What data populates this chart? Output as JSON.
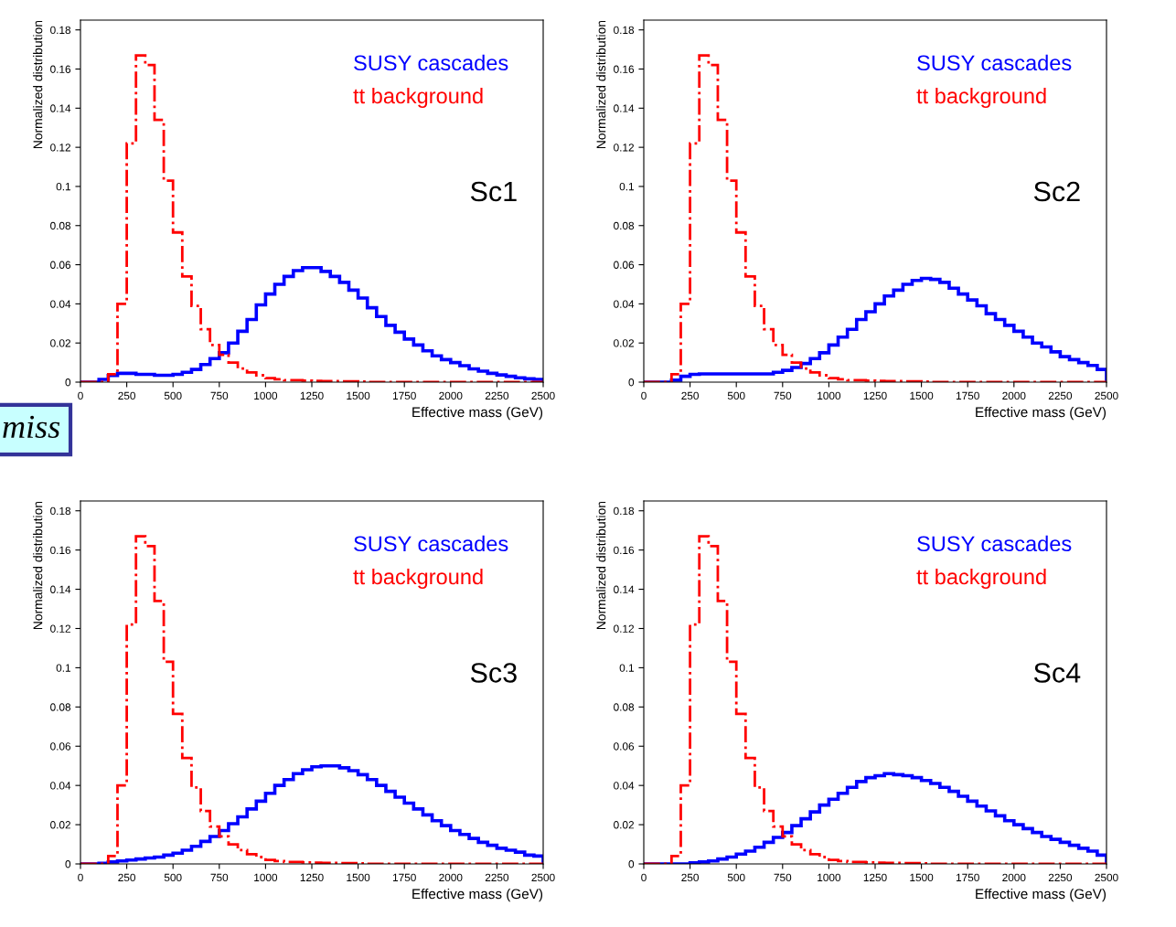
{
  "chart_data": [
    {
      "type": "histogram",
      "xlabel": "Effective mass (GeV)",
      "ylabel": "Normalized distribution",
      "annotations": [
        "Sc1",
        "miss"
      ],
      "legend": "top right",
      "xlim": [
        0,
        2500
      ],
      "ylim": [
        0,
        0.185
      ],
      "xticks": [
        0,
        250,
        500,
        750,
        1000,
        1250,
        1500,
        1750,
        2000,
        2250,
        2500
      ],
      "yticks": [
        0,
        0.02,
        0.04,
        0.06,
        0.08,
        0.1,
        0.12,
        0.14,
        0.16,
        0.18
      ],
      "bins": [
        0,
        50,
        100,
        150,
        200,
        250,
        300,
        350,
        400,
        450,
        500,
        550,
        600,
        650,
        700,
        750,
        800,
        850,
        900,
        950,
        1000,
        1050,
        1100,
        1150,
        1200,
        1250,
        1300,
        1350,
        1400,
        1450,
        1500,
        1550,
        1600,
        1650,
        1700,
        1750,
        1800,
        1850,
        1900,
        1950,
        2000,
        2050,
        2100,
        2150,
        2200,
        2250,
        2300,
        2350,
        2400,
        2450,
        2500
      ],
      "series": [
        {
          "name": "SUSY cascades",
          "color": "#0000ff",
          "line_style": "solid",
          "values": [
            0,
            0,
            0.0014,
            0.0034,
            0.0045,
            0.0045,
            0.004,
            0.004,
            0.0035,
            0.0035,
            0.004,
            0.005,
            0.0065,
            0.009,
            0.012,
            0.015,
            0.02,
            0.026,
            0.032,
            0.0395,
            0.045,
            0.05,
            0.054,
            0.057,
            0.0585,
            0.0585,
            0.0566,
            0.054,
            0.051,
            0.047,
            0.043,
            0.038,
            0.0335,
            0.029,
            0.0255,
            0.022,
            0.019,
            0.016,
            0.0134,
            0.0115,
            0.01,
            0.0084,
            0.0068,
            0.0056,
            0.0045,
            0.0037,
            0.003,
            0.0022,
            0.0017,
            0.0014
          ]
        },
        {
          "name": "tt background",
          "color": "#ff0000",
          "line_style": "dashdot",
          "values": [
            0,
            0,
            0,
            0.004,
            0.04,
            0.122,
            0.167,
            0.162,
            0.134,
            0.103,
            0.0765,
            0.054,
            0.039,
            0.027,
            0.019,
            0.014,
            0.01,
            0.007,
            0.005,
            0.0035,
            0.002,
            0.0015,
            0.001,
            0.001,
            0.0008,
            0.0006,
            0.0005,
            0.0005,
            0.0004,
            0.0004,
            0.0003,
            0,
            0,
            0,
            0,
            0,
            0,
            0,
            0,
            0,
            0,
            0,
            0,
            0,
            0,
            0,
            0,
            0,
            0,
            0
          ]
        }
      ]
    },
    {
      "type": "histogram",
      "xlabel": "Effective mass (GeV)",
      "ylabel": "Normalized distribution",
      "annotations": [
        "Sc2"
      ],
      "legend": "top right",
      "xlim": [
        0,
        2500
      ],
      "ylim": [
        0,
        0.185
      ],
      "xticks": [
        0,
        250,
        500,
        750,
        1000,
        1250,
        1500,
        1750,
        2000,
        2250,
        2500
      ],
      "yticks": [
        0,
        0.02,
        0.04,
        0.06,
        0.08,
        0.1,
        0.12,
        0.14,
        0.16,
        0.18
      ],
      "bins": [
        0,
        50,
        100,
        150,
        200,
        250,
        300,
        350,
        400,
        450,
        500,
        550,
        600,
        650,
        700,
        750,
        800,
        850,
        900,
        950,
        1000,
        1050,
        1100,
        1150,
        1200,
        1250,
        1300,
        1350,
        1400,
        1450,
        1500,
        1550,
        1600,
        1650,
        1700,
        1750,
        1800,
        1850,
        1900,
        1950,
        2000,
        2050,
        2100,
        2150,
        2200,
        2250,
        2300,
        2350,
        2400,
        2450,
        2500
      ],
      "series": [
        {
          "name": "SUSY cascades",
          "color": "#0000ff",
          "line_style": "solid",
          "values": [
            0,
            0,
            0,
            0.001,
            0.003,
            0.004,
            0.0042,
            0.0042,
            0.0042,
            0.0042,
            0.0042,
            0.0042,
            0.0042,
            0.0042,
            0.005,
            0.006,
            0.0075,
            0.0095,
            0.012,
            0.015,
            0.019,
            0.023,
            0.027,
            0.032,
            0.036,
            0.04,
            0.044,
            0.047,
            0.05,
            0.052,
            0.053,
            0.0525,
            0.051,
            0.048,
            0.045,
            0.042,
            0.039,
            0.035,
            0.032,
            0.029,
            0.026,
            0.023,
            0.02,
            0.018,
            0.0155,
            0.013,
            0.0115,
            0.01,
            0.0085,
            0.0065
          ]
        },
        {
          "name": "tt background",
          "color": "#ff0000",
          "line_style": "dashdot",
          "values": [
            0,
            0,
            0,
            0.004,
            0.04,
            0.122,
            0.167,
            0.162,
            0.134,
            0.103,
            0.0765,
            0.054,
            0.039,
            0.027,
            0.019,
            0.014,
            0.01,
            0.007,
            0.005,
            0.0035,
            0.002,
            0.0015,
            0.001,
            0.001,
            0.0008,
            0.0006,
            0.0005,
            0.0005,
            0.0004,
            0.0004,
            0.0003,
            0,
            0,
            0,
            0,
            0,
            0,
            0,
            0,
            0,
            0,
            0,
            0,
            0,
            0,
            0,
            0,
            0,
            0,
            0
          ]
        }
      ]
    },
    {
      "type": "histogram",
      "xlabel": "Effective mass (GeV)",
      "ylabel": "Normalized distribution",
      "annotations": [
        "Sc3"
      ],
      "legend": "top right",
      "xlim": [
        0,
        2500
      ],
      "ylim": [
        0,
        0.185
      ],
      "xticks": [
        0,
        250,
        500,
        750,
        1000,
        1250,
        1500,
        1750,
        2000,
        2250,
        2500
      ],
      "yticks": [
        0,
        0.02,
        0.04,
        0.06,
        0.08,
        0.1,
        0.12,
        0.14,
        0.16,
        0.18
      ],
      "bins": [
        0,
        50,
        100,
        150,
        200,
        250,
        300,
        350,
        400,
        450,
        500,
        550,
        600,
        650,
        700,
        750,
        800,
        850,
        900,
        950,
        1000,
        1050,
        1100,
        1150,
        1200,
        1250,
        1300,
        1350,
        1400,
        1450,
        1500,
        1550,
        1600,
        1650,
        1700,
        1750,
        1800,
        1850,
        1900,
        1950,
        2000,
        2050,
        2100,
        2150,
        2200,
        2250,
        2300,
        2350,
        2400,
        2450,
        2500
      ],
      "series": [
        {
          "name": "SUSY cascades",
          "color": "#0000ff",
          "line_style": "solid",
          "values": [
            0,
            0,
            0.0003,
            0.001,
            0.0015,
            0.002,
            0.0025,
            0.003,
            0.0035,
            0.0045,
            0.0055,
            0.007,
            0.009,
            0.0115,
            0.014,
            0.017,
            0.0205,
            0.024,
            0.028,
            0.032,
            0.036,
            0.04,
            0.043,
            0.046,
            0.048,
            0.0495,
            0.05,
            0.05,
            0.049,
            0.0475,
            0.0455,
            0.043,
            0.04,
            0.037,
            0.034,
            0.031,
            0.028,
            0.025,
            0.022,
            0.0195,
            0.017,
            0.015,
            0.013,
            0.011,
            0.0095,
            0.008,
            0.007,
            0.006,
            0.0045,
            0.004
          ]
        },
        {
          "name": "tt background",
          "color": "#ff0000",
          "line_style": "dashdot",
          "values": [
            0,
            0,
            0,
            0.004,
            0.04,
            0.122,
            0.167,
            0.162,
            0.134,
            0.103,
            0.0765,
            0.054,
            0.039,
            0.027,
            0.019,
            0.014,
            0.01,
            0.007,
            0.005,
            0.0035,
            0.002,
            0.0015,
            0.001,
            0.001,
            0.0008,
            0.0006,
            0.0005,
            0.0005,
            0.0004,
            0.0004,
            0.0003,
            0,
            0,
            0,
            0,
            0,
            0,
            0,
            0,
            0,
            0,
            0,
            0,
            0,
            0,
            0,
            0,
            0,
            0,
            0
          ]
        }
      ]
    },
    {
      "type": "histogram",
      "xlabel": "Effective mass (GeV)",
      "ylabel": "Normalized distribution",
      "annotations": [
        "Sc4"
      ],
      "legend": "top right",
      "xlim": [
        0,
        2500
      ],
      "ylim": [
        0,
        0.185
      ],
      "xticks": [
        0,
        250,
        500,
        750,
        1000,
        1250,
        1500,
        1750,
        2000,
        2250,
        2500
      ],
      "yticks": [
        0,
        0.02,
        0.04,
        0.06,
        0.08,
        0.1,
        0.12,
        0.14,
        0.16,
        0.18
      ],
      "bins": [
        0,
        50,
        100,
        150,
        200,
        250,
        300,
        350,
        400,
        450,
        500,
        550,
        600,
        650,
        700,
        750,
        800,
        850,
        900,
        950,
        1000,
        1050,
        1100,
        1150,
        1200,
        1250,
        1300,
        1350,
        1400,
        1450,
        1500,
        1550,
        1600,
        1650,
        1700,
        1750,
        1800,
        1850,
        1900,
        1950,
        2000,
        2050,
        2100,
        2150,
        2200,
        2250,
        2300,
        2350,
        2400,
        2450,
        2500
      ],
      "series": [
        {
          "name": "SUSY cascades",
          "color": "#0000ff",
          "line_style": "solid",
          "values": [
            0,
            0,
            0,
            0,
            0,
            0.0005,
            0.001,
            0.0015,
            0.0025,
            0.0035,
            0.005,
            0.0065,
            0.0085,
            0.011,
            0.0135,
            0.016,
            0.0195,
            0.023,
            0.0265,
            0.03,
            0.033,
            0.036,
            0.039,
            0.042,
            0.044,
            0.045,
            0.046,
            0.0455,
            0.045,
            0.044,
            0.0425,
            0.041,
            0.039,
            0.037,
            0.0345,
            0.032,
            0.0295,
            0.027,
            0.0245,
            0.022,
            0.02,
            0.018,
            0.016,
            0.014,
            0.0125,
            0.011,
            0.0095,
            0.008,
            0.0065,
            0.0045
          ]
        },
        {
          "name": "tt background",
          "color": "#ff0000",
          "line_style": "dashdot",
          "values": [
            0,
            0,
            0,
            0.004,
            0.04,
            0.122,
            0.167,
            0.162,
            0.134,
            0.103,
            0.0765,
            0.054,
            0.039,
            0.027,
            0.019,
            0.014,
            0.01,
            0.007,
            0.005,
            0.0035,
            0.002,
            0.0015,
            0.001,
            0.001,
            0.0008,
            0.0006,
            0.0005,
            0.0005,
            0.0004,
            0.0004,
            0.0003,
            0,
            0,
            0,
            0,
            0,
            0,
            0,
            0,
            0,
            0,
            0,
            0,
            0,
            0,
            0,
            0,
            0,
            0,
            0
          ]
        }
      ]
    }
  ]
}
